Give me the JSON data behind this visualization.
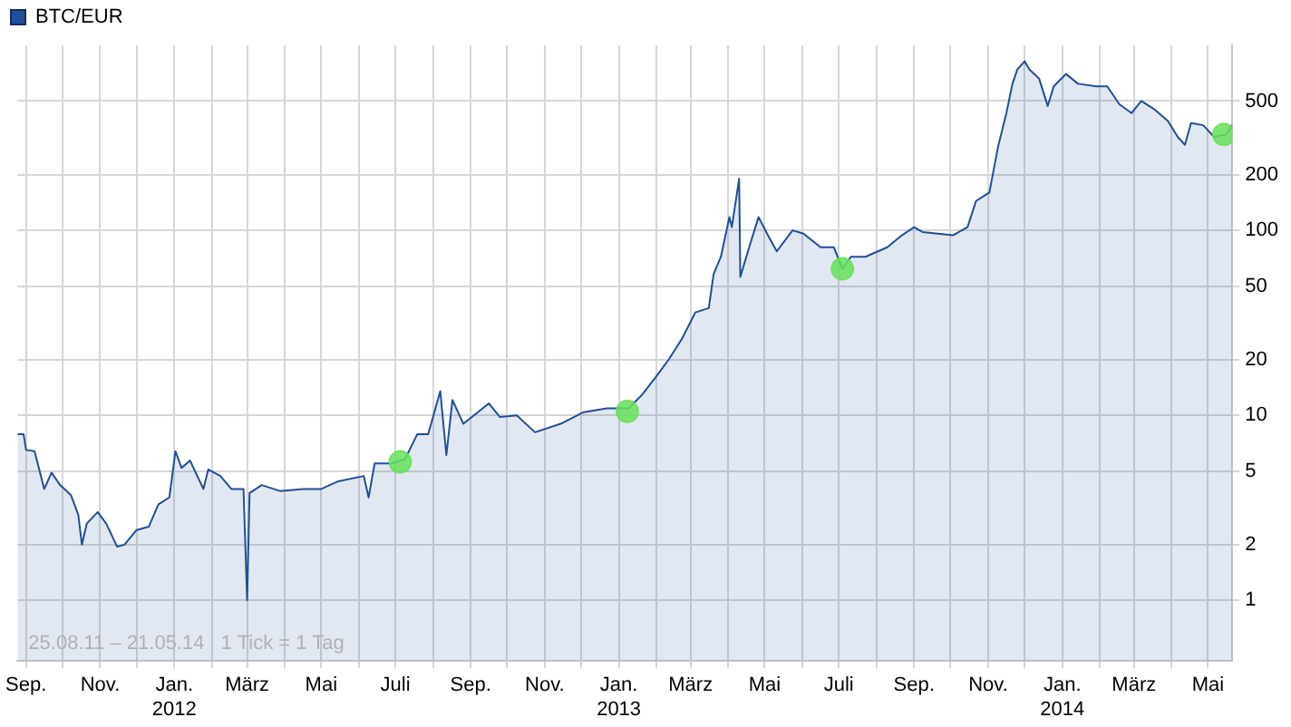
{
  "chart_data": {
    "type": "area",
    "log": "y",
    "grid": true,
    "legend": "top left",
    "xlim": [
      "2011-08-25",
      "2014-05-21"
    ],
    "xticks": [
      {
        "value": "2011-09",
        "label": "Sep."
      },
      {
        "value": "2011-10",
        "label": null
      },
      {
        "value": "2011-11",
        "label": "Nov."
      },
      {
        "value": "2011-12",
        "label": null
      },
      {
        "value": "2012-01",
        "label": "Jan.\n2012"
      },
      {
        "value": "2012-02",
        "label": null
      },
      {
        "value": "2012-03",
        "label": "März"
      },
      {
        "value": "2012-04",
        "label": null
      },
      {
        "value": "2012-05",
        "label": "Mai"
      },
      {
        "value": "2012-06",
        "label": null
      },
      {
        "value": "2012-07",
        "label": "Juli"
      },
      {
        "value": "2012-08",
        "label": null
      },
      {
        "value": "2012-09",
        "label": "Sep."
      },
      {
        "value": "2012-10",
        "label": null
      },
      {
        "value": "2012-11",
        "label": "Nov."
      },
      {
        "value": "2012-12",
        "label": null
      },
      {
        "value": "2013-01",
        "label": "Jan.\n2013"
      },
      {
        "value": "2013-02",
        "label": null
      },
      {
        "value": "2013-03",
        "label": "März"
      },
      {
        "value": "2013-04",
        "label": null
      },
      {
        "value": "2013-05",
        "label": "Mai"
      },
      {
        "value": "2013-06",
        "label": null
      },
      {
        "value": "2013-07",
        "label": "Juli"
      },
      {
        "value": "2013-08",
        "label": null
      },
      {
        "value": "2013-09",
        "label": "Sep."
      },
      {
        "value": "2013-10",
        "label": null
      },
      {
        "value": "2013-11",
        "label": "Nov."
      },
      {
        "value": "2013-12",
        "label": null
      },
      {
        "value": "2014-01",
        "label": "Jan.\n2014"
      },
      {
        "value": "2014-02",
        "label": null
      },
      {
        "value": "2014-03",
        "label": "März"
      },
      {
        "value": "2014-04",
        "label": null
      },
      {
        "value": "2014-05",
        "label": "Mai"
      }
    ],
    "ylim": [
      0.47,
      1000
    ],
    "yticks": [
      1,
      2,
      5,
      10,
      20,
      50,
      100,
      200,
      500
    ],
    "annotations": [
      "25.08.11 – 21.05.14   1 Tick = 1 Tag"
    ],
    "series": [
      {
        "name": "BTC/EUR",
        "color": "#1f4e9c",
        "x": [
          "2011-08-25",
          "2011-08-30",
          "2011-09-01",
          "2011-09-08",
          "2011-09-16",
          "2011-09-22",
          "2011-09-29",
          "2011-10-08",
          "2011-10-14",
          "2011-10-17",
          "2011-10-21",
          "2011-10-30",
          "2011-11-06",
          "2011-11-15",
          "2011-11-21",
          "2011-12-01",
          "2011-12-11",
          "2011-12-19",
          "2011-12-28",
          "2012-01-02",
          "2012-01-07",
          "2012-01-14",
          "2012-01-25",
          "2012-01-29",
          "2012-02-08",
          "2012-02-17",
          "2012-02-27",
          "2012-03-01",
          "2012-03-03",
          "2012-03-13",
          "2012-03-28",
          "2012-04-16",
          "2012-05-01",
          "2012-05-15",
          "2012-06-05",
          "2012-06-09",
          "2012-06-14",
          "2012-06-28",
          "2012-07-09",
          "2012-07-19",
          "2012-07-28",
          "2012-08-07",
          "2012-08-12",
          "2012-08-17",
          "2012-08-26",
          "2012-09-16",
          "2012-09-25",
          "2012-10-09",
          "2012-10-24",
          "2012-11-14",
          "2012-12-03",
          "2012-12-22",
          "2013-01-09",
          "2013-01-20",
          "2013-01-31",
          "2013-02-11",
          "2013-02-22",
          "2013-03-05",
          "2013-03-16",
          "2013-03-20",
          "2013-03-26",
          "2013-04-02",
          "2013-04-04",
          "2013-04-10",
          "2013-04-11",
          "2013-04-19",
          "2013-04-26",
          "2013-05-03",
          "2013-05-11",
          "2013-05-24",
          "2013-06-02",
          "2013-06-16",
          "2013-06-27",
          "2013-07-04",
          "2013-07-11",
          "2013-07-23",
          "2013-08-10",
          "2013-08-22",
          "2013-09-01",
          "2013-09-08",
          "2013-10-03",
          "2013-10-15",
          "2013-10-22",
          "2013-11-02",
          "2013-11-09",
          "2013-11-16",
          "2013-11-21",
          "2013-11-25",
          "2013-12-01",
          "2013-12-05",
          "2013-12-13",
          "2013-12-20",
          "2013-12-25",
          "2014-01-04",
          "2014-01-14",
          "2014-01-29",
          "2014-02-07",
          "2014-02-17",
          "2014-02-27",
          "2014-03-07",
          "2014-03-18",
          "2014-03-29",
          "2014-04-06",
          "2014-04-12",
          "2014-04-17",
          "2014-04-27",
          "2014-05-06",
          "2014-05-16",
          "2014-05-21"
        ],
        "values": [
          7.9,
          7.9,
          6.5,
          6.4,
          4.0,
          4.9,
          4.2,
          3.7,
          2.9,
          2.0,
          2.6,
          3.0,
          2.6,
          1.95,
          2.0,
          2.4,
          2.5,
          3.3,
          3.6,
          6.4,
          5.2,
          5.7,
          4.0,
          5.1,
          4.7,
          4.0,
          4.0,
          1.0,
          3.8,
          4.2,
          3.9,
          4.0,
          4.0,
          4.4,
          4.7,
          3.6,
          5.5,
          5.5,
          5.8,
          7.9,
          7.9,
          13.5,
          6.1,
          12.1,
          9.0,
          11.6,
          9.8,
          10.0,
          8.1,
          9.0,
          10.4,
          10.9,
          10.9,
          12.9,
          16,
          20,
          26,
          36,
          38,
          58,
          72,
          118,
          104,
          190,
          56,
          84,
          118,
          96,
          77,
          100,
          96,
          81,
          81,
          62,
          72,
          72,
          81,
          94,
          104,
          98,
          94,
          104,
          144,
          160,
          280,
          430,
          620,
          740,
          820,
          740,
          660,
          470,
          600,
          700,
          620,
          600,
          600,
          480,
          430,
          500,
          450,
          390,
          320,
          290,
          380,
          370,
          320,
          330,
          370
        ]
      },
      {
        "type": "scatter",
        "color": "#66e05a",
        "marker": "circle",
        "x": [
          "2012-07-05",
          "2013-01-08",
          "2013-07-04",
          "2014-05-14"
        ],
        "values": [
          5.6,
          10.5,
          62,
          330
        ]
      }
    ]
  }
}
